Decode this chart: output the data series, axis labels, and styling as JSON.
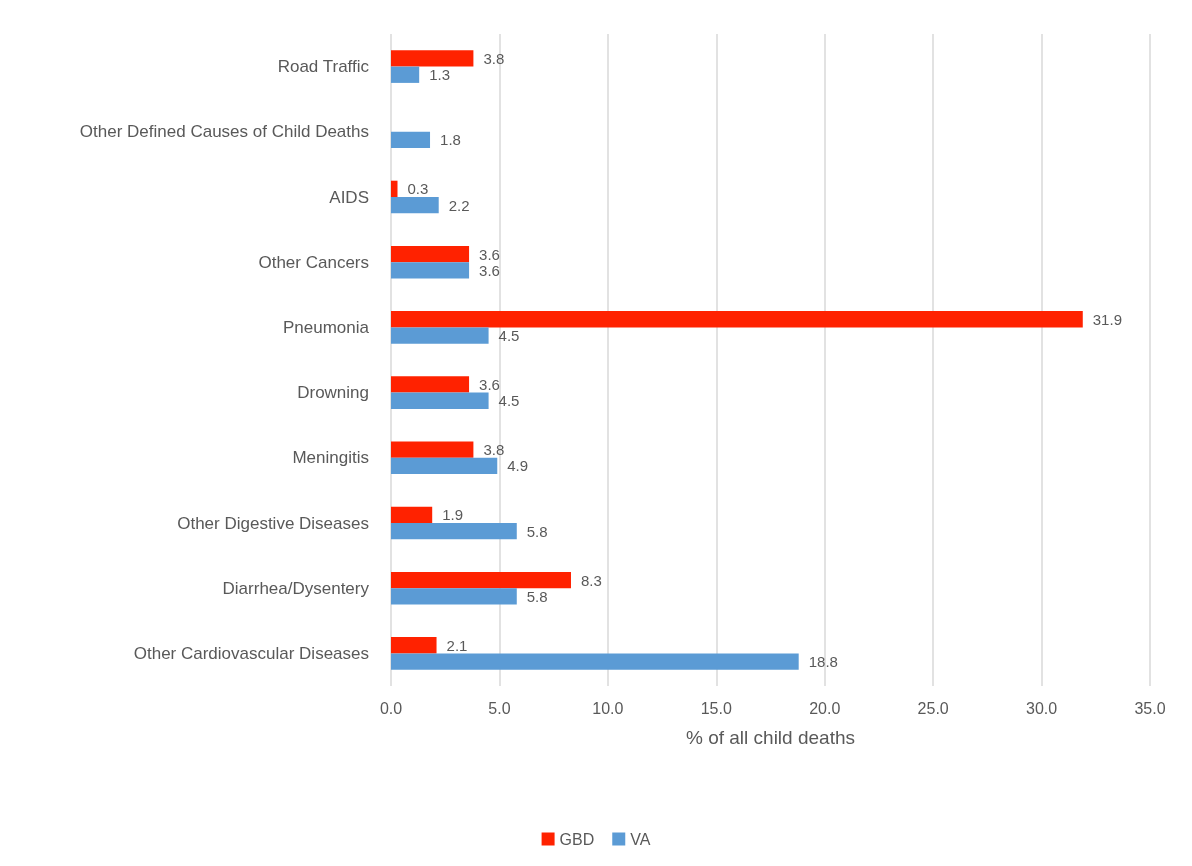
{
  "chart_data": {
    "type": "bar",
    "orientation": "horizontal",
    "xlabel": "% of all child deaths",
    "categories": [
      "Road Traffic",
      "Other Defined Causes of Child Deaths",
      "AIDS",
      "Other Cancers",
      "Pneumonia",
      "Drowning",
      "Meningitis",
      "Other Digestive Diseases",
      "Diarrhea/Dysentery",
      "Other Cardiovascular Diseases"
    ],
    "series": [
      {
        "name": "GBD",
        "color": "#ff2200",
        "values": [
          3.8,
          null,
          0.3,
          3.6,
          31.9,
          3.6,
          3.8,
          1.9,
          8.3,
          2.1
        ]
      },
      {
        "name": "VA",
        "color": "#5b9bd5",
        "values": [
          1.3,
          1.8,
          2.2,
          3.6,
          4.5,
          4.5,
          4.9,
          5.8,
          5.8,
          18.8
        ]
      }
    ],
    "xlim": [
      0,
      35
    ],
    "xticks": [
      {
        "value": 0,
        "label": "0.0"
      },
      {
        "value": 5,
        "label": "5.0"
      },
      {
        "value": 10,
        "label": "10.0"
      },
      {
        "value": 15,
        "label": "15.0"
      },
      {
        "value": 20,
        "label": "20.0"
      },
      {
        "value": 25,
        "label": "25.0"
      },
      {
        "value": 30,
        "label": "30.0"
      },
      {
        "value": 35,
        "label": "35.0"
      }
    ],
    "grid": "x",
    "legend": "bottom",
    "data_labels": true
  }
}
